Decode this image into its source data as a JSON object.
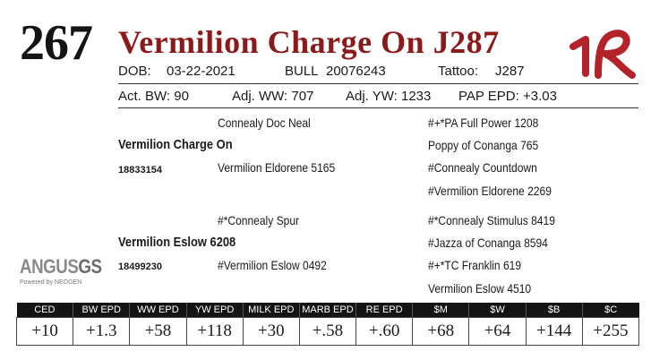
{
  "lot_number": "267",
  "animal_name": "Vermilion Charge On J287",
  "brand_text": "1R",
  "info": {
    "dob_label": "DOB:",
    "dob": "03-22-2021",
    "sex": "BULL",
    "reg_no": "20076243",
    "tattoo_label": "Tattoo:",
    "tattoo": "J287"
  },
  "performance": {
    "bw_label": "Act. BW:",
    "bw": "90",
    "ww_label": "Adj. WW:",
    "ww": "707",
    "yw_label": "Adj. YW:",
    "yw": "1233",
    "pap_label": "PAP EPD:",
    "pap": "+3.03"
  },
  "pedigree": {
    "sire": "Vermilion Charge On",
    "sire_reg": "18833154",
    "sire_sire": "Connealy Doc Neal",
    "sire_dam": "Vermilion Eldorene 5165",
    "ss_sire": "#+*PA Full Power 1208",
    "ss_dam": "Poppy of Conanga 765",
    "sd_sire": "#Connealy Countdown",
    "sd_dam": "#Vermilion Eldorene 2269",
    "dam": "Vermilion Eslow 6208",
    "dam_reg": "18499230",
    "dam_sire": "#*Connealy Spur",
    "dam_dam": "#Vermilion Eslow 0492",
    "ds_sire": "#*Connealy Stimulus 8419",
    "ds_dam": "#Jazza of Conanga 8594",
    "dd_sire": "#+*TC Franklin 619",
    "dd_dam": "Vermilion Eslow 4510"
  },
  "logo": {
    "main": "ANGUS",
    "suffix": "GS",
    "powered": "Powered by NEOGEN"
  },
  "epds": {
    "headers": [
      "CED",
      "BW EPD",
      "WW EPD",
      "YW EPD",
      "MILK EPD",
      "MARB EPD",
      "RE EPD",
      "$M",
      "$W",
      "$B",
      "$C"
    ],
    "values": [
      "+10",
      "+1.3",
      "+58",
      "+118",
      "+30",
      "+.58",
      "+.60",
      "+68",
      "+64",
      "+144",
      "+255"
    ]
  },
  "colors": {
    "title": "#8c1a1a",
    "brand": "#b5232a",
    "table_header_bg": "#141414"
  }
}
